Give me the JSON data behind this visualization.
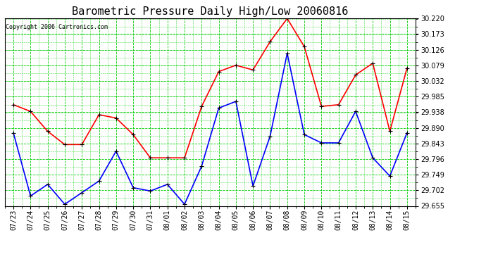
{
  "title": "Barometric Pressure Daily High/Low 20060816",
  "copyright": "Copyright 2006 Cartronics.com",
  "x_labels": [
    "07/23",
    "07/24",
    "07/25",
    "07/26",
    "07/27",
    "07/28",
    "07/29",
    "07/30",
    "07/31",
    "08/01",
    "08/02",
    "08/03",
    "08/04",
    "08/05",
    "08/06",
    "08/07",
    "08/08",
    "08/09",
    "08/10",
    "08/11",
    "08/12",
    "08/13",
    "08/14",
    "08/15"
  ],
  "high_values": [
    29.96,
    29.94,
    29.88,
    29.84,
    29.84,
    29.93,
    29.92,
    29.87,
    29.8,
    29.8,
    29.8,
    29.955,
    30.06,
    30.079,
    30.065,
    30.15,
    30.22,
    30.135,
    29.955,
    29.96,
    30.05,
    30.085,
    29.88,
    30.07
  ],
  "low_values": [
    29.875,
    29.685,
    29.72,
    29.66,
    29.695,
    29.73,
    29.82,
    29.71,
    29.7,
    29.72,
    29.66,
    29.775,
    29.95,
    29.97,
    29.715,
    29.865,
    30.115,
    29.87,
    29.845,
    29.845,
    29.94,
    29.8,
    29.745,
    29.875
  ],
  "y_min": 29.655,
  "y_max": 30.22,
  "y_ticks": [
    29.655,
    29.702,
    29.749,
    29.796,
    29.843,
    29.89,
    29.938,
    29.985,
    30.032,
    30.079,
    30.126,
    30.173,
    30.22
  ],
  "bg_color": "#ffffff",
  "grid_color": "#00cc00",
  "high_color": "#ff0000",
  "low_color": "#0000ff",
  "marker_color": "#000000",
  "title_fontsize": 11,
  "copyright_fontsize": 6,
  "tick_fontsize": 7,
  "line_width": 1.2
}
